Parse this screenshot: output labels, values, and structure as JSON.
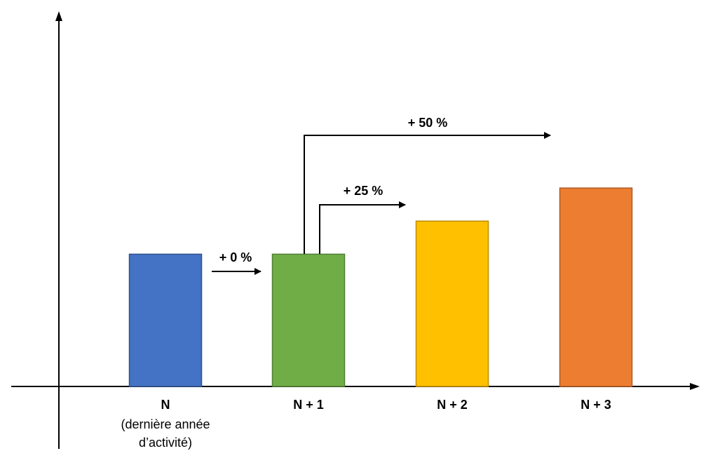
{
  "chart_data": {
    "type": "bar",
    "categories": [
      "N",
      "N + 1",
      "N + 2",
      "N + 3"
    ],
    "category_sublabels": [
      "(dernière année",
      "d’activité)"
    ],
    "values": [
      100,
      100,
      125,
      150
    ],
    "colors": [
      "#4472C4",
      "#70AD47",
      "#FFC000",
      "#ED7D31"
    ],
    "border_colors": [
      "#2F528F",
      "#507E32",
      "#BC8C00",
      "#AE5A21"
    ],
    "annotations": [
      {
        "label": "+ 0 %",
        "from": 0,
        "to": 1
      },
      {
        "label": "+ 25 %",
        "from": 1,
        "to": 2
      },
      {
        "label": "+ 50 %",
        "from": 1,
        "to": 3
      }
    ],
    "ylim": [
      0,
      200
    ],
    "grid": false,
    "title": "",
    "xlabel": "",
    "ylabel": ""
  }
}
